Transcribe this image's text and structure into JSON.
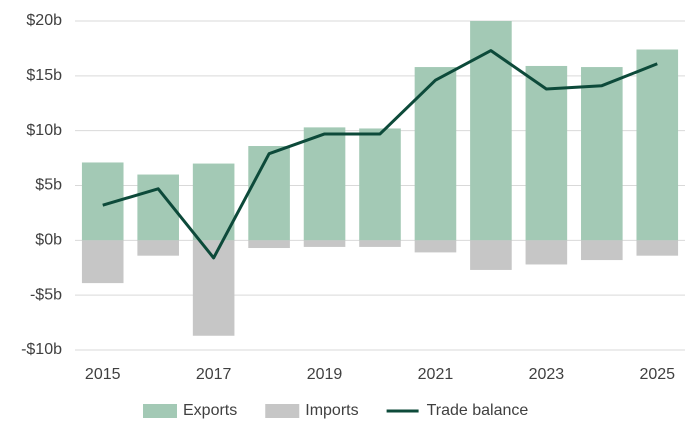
{
  "chart_data": {
    "type": "bar",
    "categories": [
      "2015",
      null,
      "2017",
      null,
      "2019",
      null,
      "2021",
      null,
      "2023",
      null,
      "2025"
    ],
    "series": [
      {
        "name": "Exports",
        "type": "bar",
        "color": "#a3c9b5",
        "values": [
          7.1,
          6.0,
          7.0,
          8.6,
          10.3,
          10.2,
          15.8,
          20.0,
          15.9,
          15.8,
          17.4
        ]
      },
      {
        "name": "Imports",
        "type": "bar",
        "color": "#c6c6c6",
        "values": [
          -3.9,
          -1.4,
          -8.7,
          -0.7,
          -0.6,
          -0.6,
          -1.1,
          -2.7,
          -2.2,
          -1.8,
          -1.4
        ]
      },
      {
        "name": "Trade balance",
        "type": "line",
        "color": "#0d4a3a",
        "values": [
          3.2,
          4.7,
          -1.6,
          7.9,
          9.7,
          9.7,
          14.6,
          17.3,
          13.8,
          14.1,
          16.1
        ]
      }
    ],
    "ylim": [
      -10,
      20
    ],
    "yticks": [
      {
        "value": -10,
        "label": "-$10b"
      },
      {
        "value": -5,
        "label": "-$5b"
      },
      {
        "value": 0,
        "label": "$0b"
      },
      {
        "value": 5,
        "label": "$5b"
      },
      {
        "value": 10,
        "label": "$10b"
      },
      {
        "value": 15,
        "label": "$15b"
      },
      {
        "value": 20,
        "label": "$20b"
      }
    ],
    "grid": true,
    "legend": "bottom"
  }
}
